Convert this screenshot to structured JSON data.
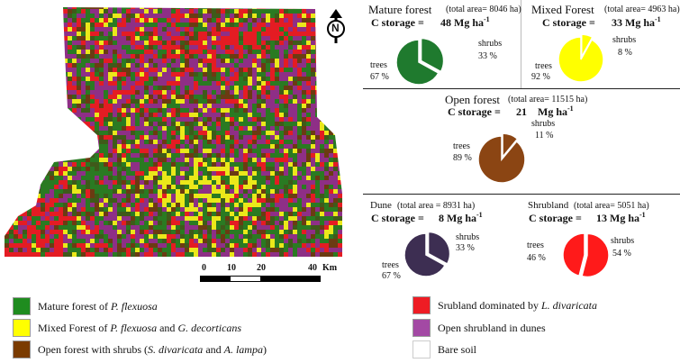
{
  "scale": {
    "ticks": [
      "0",
      "10",
      "20",
      "40"
    ],
    "unit": "Km"
  },
  "north": {
    "letter": "N",
    "icon": "north-arrow-icon"
  },
  "panels": [
    {
      "id": "mature",
      "title": "Mature forest",
      "area": "(total area= 8046 ha)",
      "storage_prefix": "C storage =",
      "storage_value": "48 Mg ha",
      "storage_exp": "-1",
      "trees_label": "trees",
      "trees_pct": "67 %",
      "shrubs_label": "shrubs",
      "shrubs_pct": "33 %",
      "trees_fraction": 0.67,
      "color": "#1f7a2e"
    },
    {
      "id": "mixed",
      "title": "Mixed Forest",
      "area": "(total area= 4963 ha)",
      "storage_prefix": "C storage =",
      "storage_value": "33 Mg ha",
      "storage_exp": "-1",
      "trees_label": "trees",
      "trees_pct": "92 %",
      "shrubs_label": "shrubs",
      "shrubs_pct": "8 %",
      "trees_fraction": 0.92,
      "color": "#ffff00"
    },
    {
      "id": "open",
      "title": "Open forest",
      "area": "(total area= 11515 ha)",
      "storage_prefix": "C storage =",
      "storage_value": "21",
      "storage_unit": "Mg ha",
      "storage_exp": "-1",
      "trees_label": "trees",
      "trees_pct": "89 %",
      "shrubs_label": "shrubs",
      "shrubs_pct": "11 %",
      "trees_fraction": 0.89,
      "color": "#8b4513"
    },
    {
      "id": "dune",
      "title": "Dune",
      "area": "(total area = 8931 ha)",
      "storage_prefix": "C storage =",
      "storage_value": "8 Mg ha",
      "storage_exp": "-1",
      "trees_label": "trees",
      "trees_pct": "67 %",
      "shrubs_label": "shrubs",
      "shrubs_pct": "33 %",
      "trees_fraction": 0.67,
      "color": "#3d2e52"
    },
    {
      "id": "shrub",
      "title": "Shrubland",
      "area": "(total area= 5051 ha)",
      "storage_prefix": "C storage =",
      "storage_value": "13 Mg ha",
      "storage_exp": "-1",
      "trees_label": "trees",
      "trees_pct": "46 %",
      "shrubs_label": "shrubs",
      "shrubs_pct": "54 %",
      "trees_fraction": 0.46,
      "color": "#ff1a1a"
    }
  ],
  "legend": [
    {
      "color": "#1f8c1f",
      "parts": [
        "Mature forest of ",
        "P. flexuosa",
        ""
      ]
    },
    {
      "color": "#ffff00",
      "parts": [
        "Mixed Forest of ",
        "P. flexuosa",
        " and ",
        "G. decorticans",
        ""
      ]
    },
    {
      "color": "#7a3b00",
      "parts": [
        "Open forest with shrubs (",
        "S. divaricata",
        " and ",
        "A. lampa",
        ")"
      ]
    },
    {
      "color": "#ee1c24",
      "parts": [
        "Srubland dominated by ",
        "L. divaricata",
        ""
      ]
    },
    {
      "color": "#a349a4",
      "parts": [
        "Open shrubland in dunes"
      ]
    },
    {
      "color": "#ffffff",
      "parts": [
        "Bare soil"
      ]
    }
  ]
}
